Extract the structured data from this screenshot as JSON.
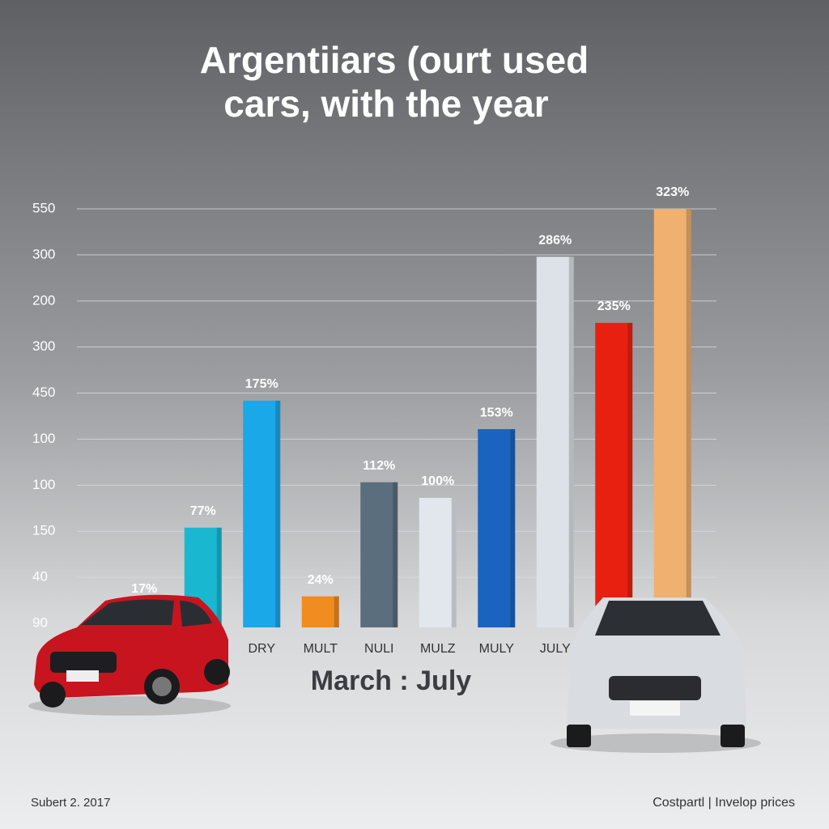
{
  "chart_data": {
    "type": "bar",
    "title": [
      "Argentiiars (ourt used",
      "cars, with the year"
    ],
    "subtitle": "March : July",
    "y_axis_labels": [
      "550",
      "300",
      "200",
      "300",
      "450",
      "100",
      "100",
      "150",
      "40",
      "90"
    ],
    "categories": [
      null,
      null,
      "DRY",
      "MULT",
      "NULI",
      "MULZ",
      "MULY",
      "JULY",
      null,
      null
    ],
    "values": [
      17,
      77,
      175,
      24,
      112,
      100,
      153,
      286,
      235,
      323
    ],
    "value_labels": [
      "17%",
      "77%",
      "175%",
      "24%",
      "112%",
      "100%",
      "153%",
      "286%",
      "235%",
      "323%"
    ],
    "colors": [
      "#e8731a",
      "#1ab8d0",
      "#1aa8e8",
      "#f08c20",
      "#5a6e7e",
      "#e2e7ee",
      "#1a64c0",
      "#dde2e8",
      "#e82010",
      "#f0b070"
    ],
    "footer_left": "Subert 2. 2017",
    "footer_right": "Costpartl | Invelop prices"
  }
}
